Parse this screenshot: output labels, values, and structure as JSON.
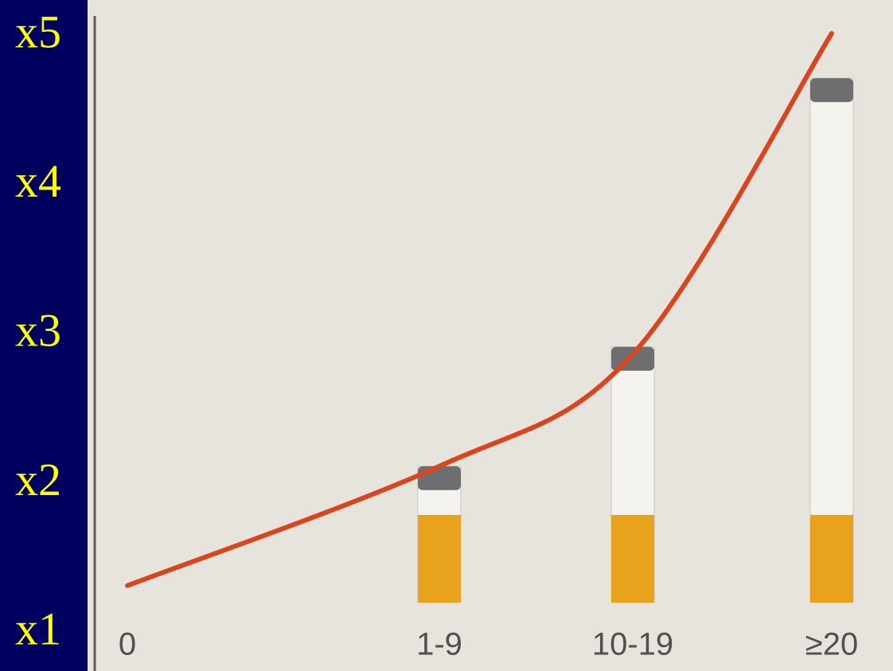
{
  "chart_data": {
    "type": "bar",
    "categories": [
      "0",
      "1-9",
      "10-19",
      "≥20"
    ],
    "values": [
      null,
      2.1,
      2.9,
      4.7
    ],
    "color": "#f5f3ee",
    "filter_color": "#e8a21c",
    "curve": {
      "values": [
        1.3,
        2.1,
        2.85,
        5.0
      ],
      "color": "#d8461f"
    },
    "ylim": [
      1,
      5
    ],
    "yticks": [
      {
        "value": 1,
        "label": "x1"
      },
      {
        "value": 2,
        "label": "x2"
      },
      {
        "value": 3,
        "label": "x3"
      },
      {
        "value": 4,
        "label": "x4"
      },
      {
        "value": 5,
        "label": "x5"
      }
    ]
  }
}
